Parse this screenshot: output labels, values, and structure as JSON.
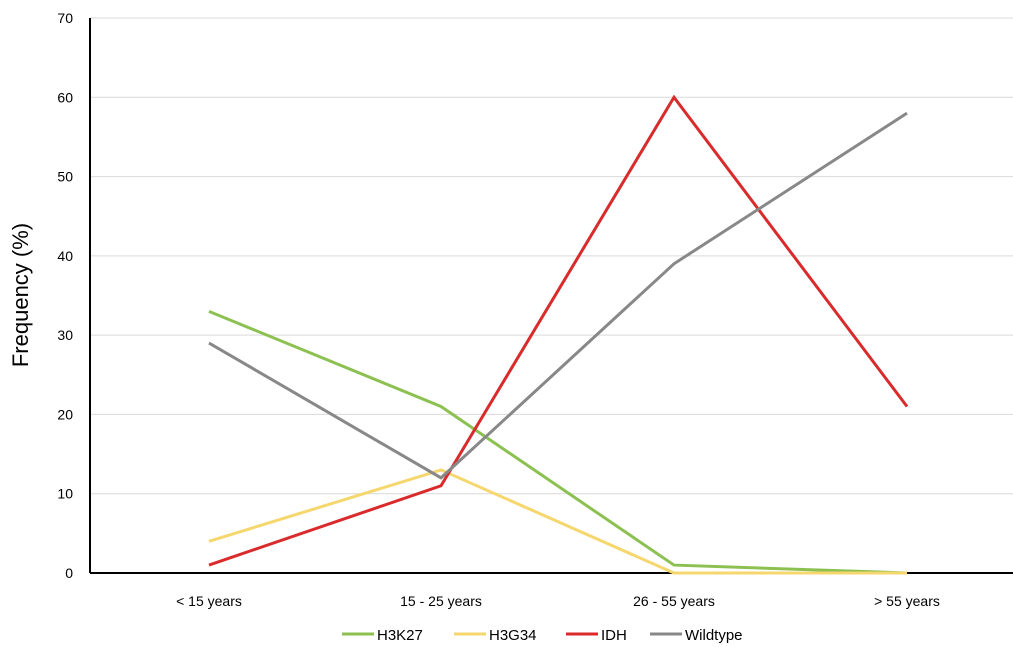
{
  "chart_data": {
    "type": "line",
    "title": "",
    "xlabel": "",
    "ylabel": "Frequency (%)",
    "categories": [
      "< 15 years",
      "15 - 25 years",
      "26 - 55 years",
      "> 55 years"
    ],
    "ylim": [
      0,
      70
    ],
    "yticks": [
      0,
      10,
      20,
      30,
      40,
      50,
      60,
      70
    ],
    "grid": true,
    "legend_position": "bottom",
    "series": [
      {
        "name": "H3K27",
        "color": "#8cc152",
        "values": [
          33,
          21,
          1,
          0
        ]
      },
      {
        "name": "H3G34",
        "color": "#f5d76e",
        "values": [
          4,
          13,
          0,
          0
        ]
      },
      {
        "name": "IDH",
        "color": "#d92b2b",
        "values": [
          1,
          11,
          60,
          21
        ]
      },
      {
        "name": "Wildtype",
        "color": "#888888",
        "values": [
          29,
          12,
          39,
          58
        ]
      }
    ]
  }
}
